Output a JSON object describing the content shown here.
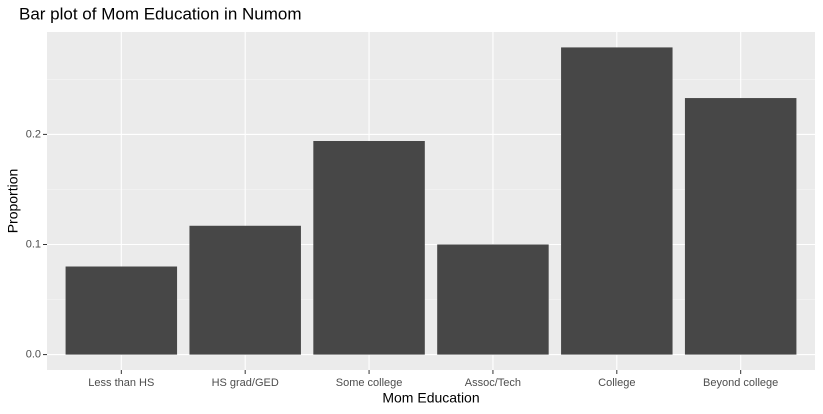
{
  "chart_data": {
    "type": "bar",
    "title": "Bar plot of Mom Education in Numom",
    "x_label": "Mom Education",
    "y_label": "Proportion",
    "categories": [
      "Less than HS",
      "HS grad/GED",
      "Some college",
      "Assoc/Tech",
      "College",
      "Beyond college"
    ],
    "values": [
      0.08,
      0.117,
      0.194,
      0.1,
      0.279,
      0.233
    ],
    "color": "#474747",
    "ylim": [
      -0.014,
      0.293
    ],
    "yticks": [
      {
        "value": 0,
        "label": "0.0"
      },
      0.1,
      0.2
    ],
    "grid": true
  }
}
